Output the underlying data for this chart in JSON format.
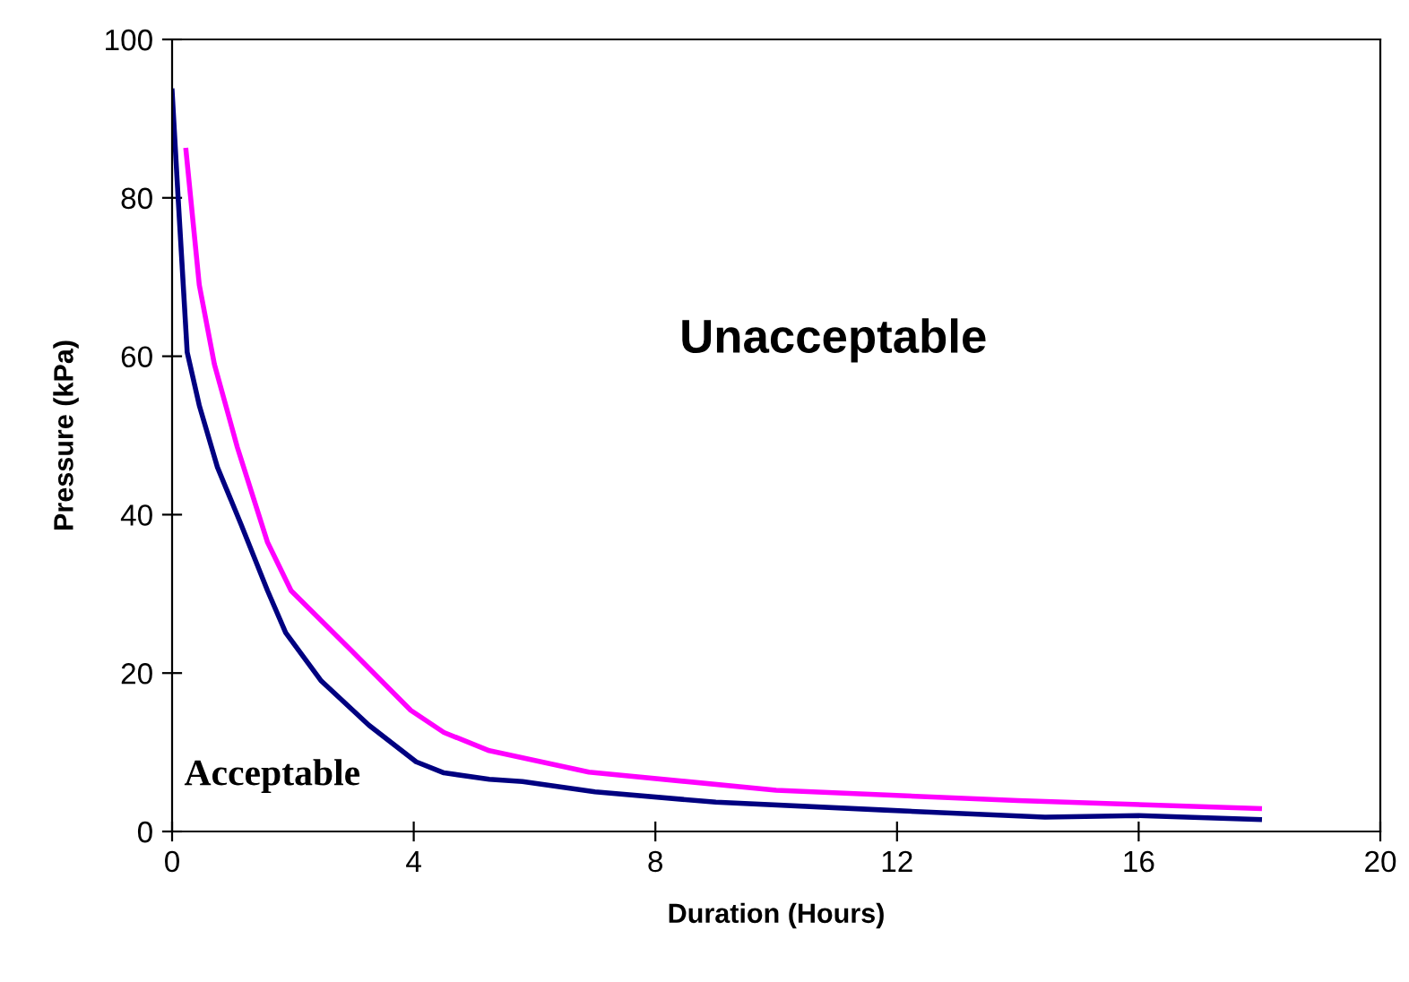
{
  "chart_data": {
    "type": "line",
    "xlabel": "Duration (Hours)",
    "ylabel": "Pressure (kPa)",
    "xlim": [
      0,
      20
    ],
    "ylim": [
      0,
      100
    ],
    "xticks": [
      0,
      4,
      8,
      12,
      16,
      20
    ],
    "yticks": [
      0,
      20,
      40,
      60,
      80,
      100
    ],
    "grid": false,
    "marker": "none",
    "line_style": "solid",
    "series": [
      {
        "color": "#ff00ff",
        "x": [
          0.23,
          0.45,
          0.7,
          1.08,
          1.58,
          1.97,
          2.96,
          3.95,
          4.5,
          5.25,
          6.9,
          10,
          14,
          18
        ],
        "values": [
          86,
          69,
          59,
          48.5,
          36.5,
          30.4,
          22.9,
          15.3,
          12.5,
          10.2,
          7.5,
          5.2,
          3.9,
          2.9
        ]
      },
      {
        "color": "#000080",
        "x": [
          0,
          0.1,
          0.25,
          0.45,
          0.75,
          1.14,
          1.58,
          1.88,
          2.47,
          3.26,
          4.04,
          4.5,
          5.25,
          5.8,
          7.0,
          9.0,
          11.8,
          14.45,
          16,
          18
        ],
        "values": [
          93.5,
          80,
          60.5,
          53.8,
          46,
          38.8,
          30.4,
          25.1,
          19,
          13.4,
          8.8,
          7.4,
          6.6,
          6.3,
          5.0,
          3.7,
          2.7,
          1.8,
          2.0,
          1.5
        ]
      }
    ],
    "annotations": [
      "Unacceptable",
      "Acceptable"
    ]
  }
}
